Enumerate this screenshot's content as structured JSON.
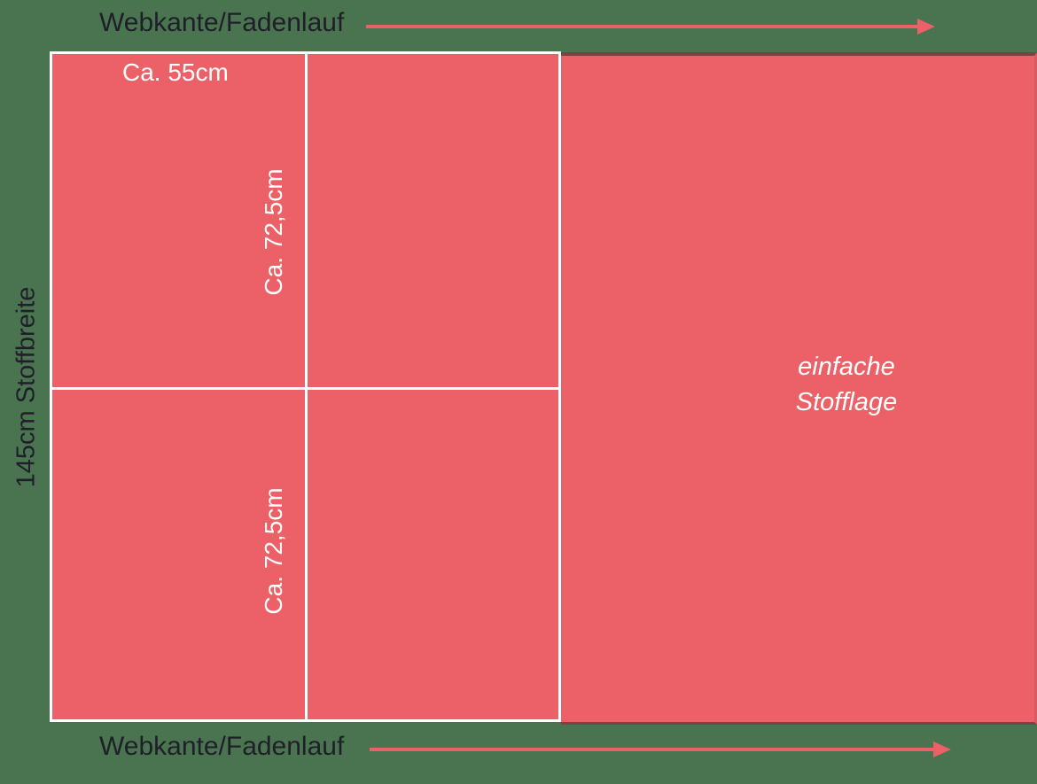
{
  "colors": {
    "background": "#4a7350",
    "fabric": "#ec6167",
    "fabric-dark-edge": "#7d4145",
    "fabric-right-edge": "#d85b61",
    "grid-line": "#ffffff",
    "arrow": "#ec6167",
    "text-dark": "#1f1f29",
    "text-light": "#ffffff"
  },
  "labels": {
    "selvedge_top": "Webkante/Fadenlauf",
    "selvedge_bottom": "Webkante/Fadenlauf",
    "fabric_width": "145cm Stoffbreite",
    "piece_width": "Ca. 55cm",
    "piece_height_top": "Ca. 72,5cm",
    "piece_height_bottom": "Ca. 72,5cm",
    "single_layer_line1": "einfache",
    "single_layer_line2": "Stofflage"
  },
  "icons": {
    "grain_arrow_top": "right-arrow",
    "grain_arrow_bottom": "right-arrow"
  }
}
